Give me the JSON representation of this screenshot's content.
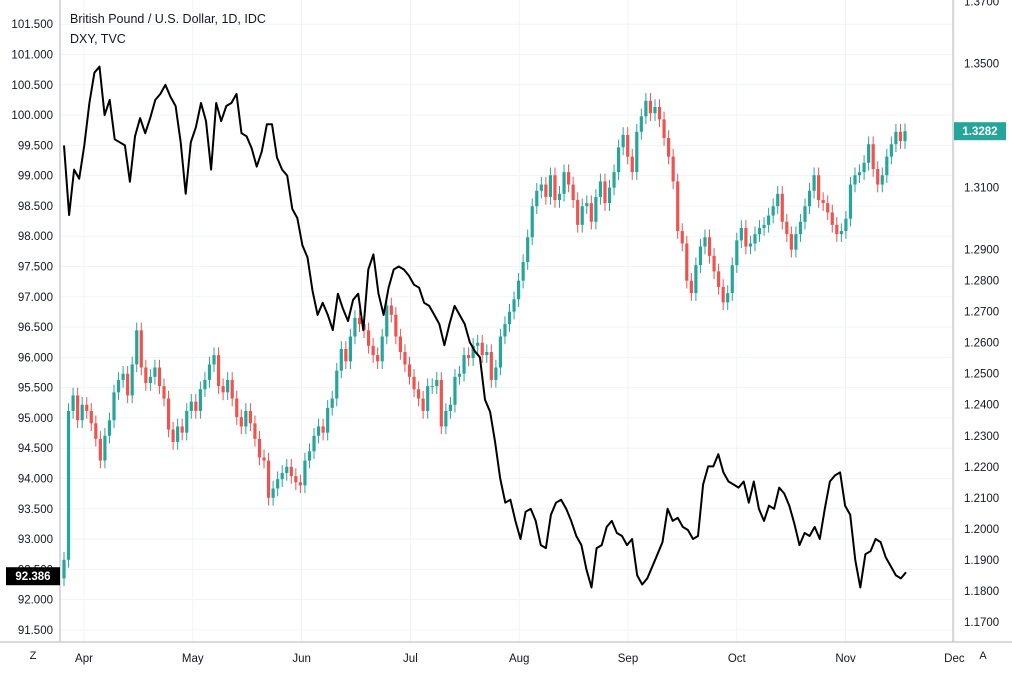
{
  "chart_data": {
    "type": "line",
    "title": "British Pound / U.S. Dollar, 1D, IDC",
    "subtitle": "DXY, TVC",
    "corner_left": "Z",
    "corner_right": "A",
    "x_labels": [
      "Apr",
      "May",
      "Jun",
      "Jul",
      "Aug",
      "Sep",
      "Oct",
      "Nov",
      "Dec"
    ],
    "left_axis": {
      "range": [
        91.3,
        101.9
      ],
      "ticks": [
        "91.500",
        "92.000",
        "92.500",
        "93.000",
        "93.500",
        "94.000",
        "94.500",
        "95.000",
        "95.500",
        "96.000",
        "96.500",
        "97.000",
        "97.500",
        "98.000",
        "98.500",
        "99.000",
        "99.500",
        "100.000",
        "100.500",
        "101.000",
        "101.500"
      ],
      "last_value": "92.386"
    },
    "right_axis": {
      "range": [
        1.1635,
        1.3705
      ],
      "ticks": [
        "1.1700",
        "1.1800",
        "1.1900",
        "1.2000",
        "1.2100",
        "1.2200",
        "1.2300",
        "1.2400",
        "1.2500",
        "1.2600",
        "1.2700",
        "1.2800",
        "1.2900",
        "1.3100",
        "1.3500",
        "1.3700"
      ],
      "last_value": "1.3282"
    },
    "series": [
      {
        "name": "DXY, TVC",
        "color": "#000000",
        "values": [
          99.5,
          98.35,
          99.1,
          98.95,
          99.5,
          100.2,
          100.7,
          100.8,
          100.0,
          100.25,
          99.6,
          99.55,
          99.5,
          98.9,
          99.65,
          99.95,
          99.7,
          99.95,
          100.25,
          100.35,
          100.5,
          100.3,
          100.15,
          99.55,
          98.7,
          99.55,
          99.8,
          100.2,
          99.9,
          99.1,
          100.2,
          99.9,
          100.15,
          100.2,
          100.35,
          99.7,
          99.65,
          99.45,
          99.15,
          99.4,
          99.85,
          99.85,
          99.3,
          99.1,
          99.0,
          98.45,
          98.3,
          97.85,
          97.65,
          97.1,
          96.7,
          96.9,
          96.7,
          96.45,
          97.05,
          96.8,
          96.6,
          96.95,
          97.05,
          96.45,
          97.45,
          97.7,
          97.05,
          96.7,
          97.15,
          97.45,
          97.5,
          97.45,
          97.35,
          97.2,
          97.15,
          96.9,
          96.85,
          96.7,
          96.55,
          96.2,
          96.55,
          96.85,
          96.7,
          96.55,
          96.25,
          96.1,
          96.0,
          95.3,
          95.1,
          94.6,
          94.0,
          93.6,
          93.65,
          93.3,
          93.0,
          93.45,
          93.5,
          93.3,
          92.9,
          92.85,
          93.4,
          93.6,
          93.65,
          93.5,
          93.3,
          93.05,
          92.9,
          92.5,
          92.2,
          92.85,
          92.9,
          93.2,
          93.3,
          93.1,
          93.05,
          92.9,
          93.0,
          92.4,
          92.25,
          92.35,
          92.55,
          92.75,
          92.95,
          93.5,
          93.3,
          93.35,
          93.2,
          93.15,
          93.0,
          93.05,
          93.9,
          94.2,
          94.2,
          94.4,
          94.1,
          93.95,
          93.9,
          93.85,
          93.95,
          93.6,
          93.95,
          93.5,
          93.3,
          93.55,
          93.5,
          93.85,
          93.75,
          93.55,
          93.25,
          92.9,
          93.1,
          93.05,
          93.2,
          93.0,
          93.5,
          93.95,
          94.05,
          94.1,
          93.55,
          93.4,
          92.65,
          92.2,
          92.75,
          92.8,
          93.0,
          92.95,
          92.7,
          92.55,
          92.4,
          92.35,
          92.45
        ]
      },
      {
        "name": "British Pound / U.S. Dollar",
        "color": "#26a69a",
        "values": [
          1.19,
          1.238,
          1.243,
          1.235,
          1.24,
          1.238,
          1.234,
          1.229,
          1.222,
          1.23,
          1.235,
          1.244,
          1.248,
          1.25,
          1.243,
          1.253,
          1.264,
          1.252,
          1.247,
          1.249,
          1.252,
          1.246,
          1.242,
          1.232,
          1.228,
          1.233,
          1.231,
          1.238,
          1.241,
          1.238,
          1.245,
          1.248,
          1.253,
          1.256,
          1.246,
          1.244,
          1.248,
          1.242,
          1.236,
          1.233,
          1.238,
          1.234,
          1.229,
          1.223,
          1.222,
          1.21,
          1.213,
          1.216,
          1.218,
          1.22,
          1.217,
          1.215,
          1.214,
          1.222,
          1.225,
          1.23,
          1.233,
          1.231,
          1.239,
          1.242,
          1.251,
          1.258,
          1.254,
          1.262,
          1.268,
          1.266,
          1.264,
          1.259,
          1.256,
          1.254,
          1.262,
          1.272,
          1.269,
          1.262,
          1.257,
          1.253,
          1.249,
          1.245,
          1.242,
          1.238,
          1.246,
          1.246,
          1.248,
          1.233,
          1.238,
          1.24,
          1.249,
          1.25,
          1.256,
          1.255,
          1.259,
          1.26,
          1.256,
          1.257,
          1.248,
          1.252,
          1.262,
          1.266,
          1.27,
          1.274,
          1.28,
          1.286,
          1.294,
          1.304,
          1.309,
          1.311,
          1.307,
          1.314,
          1.306,
          1.308,
          1.315,
          1.311,
          1.306,
          1.298,
          1.304,
          1.305,
          1.299,
          1.307,
          1.312,
          1.305,
          1.31,
          1.315,
          1.323,
          1.327,
          1.32,
          1.315,
          1.328,
          1.333,
          1.338,
          1.334,
          1.336,
          1.332,
          1.326,
          1.32,
          1.312,
          1.296,
          1.292,
          1.28,
          1.276,
          1.285,
          1.291,
          1.294,
          1.288,
          1.283,
          1.278,
          1.273,
          1.276,
          1.285,
          1.293,
          1.297,
          1.291,
          1.292,
          1.295,
          1.297,
          1.298,
          1.301,
          1.304,
          1.308,
          1.299,
          1.295,
          1.29,
          1.295,
          1.299,
          1.304,
          1.309,
          1.314,
          1.306,
          1.305,
          1.302,
          1.298,
          1.295,
          1.296,
          1.3,
          1.311,
          1.314,
          1.315,
          1.318,
          1.324,
          1.316,
          1.311,
          1.314,
          1.32,
          1.324,
          1.328,
          1.325,
          1.3282
        ]
      }
    ],
    "colors": {
      "up": "#26a69a",
      "down": "#ef5350",
      "grid": "#f0f3fa",
      "axis_text": "#131722",
      "badge_black": "#000000",
      "badge_green": "#26a69a"
    },
    "grid": true
  }
}
